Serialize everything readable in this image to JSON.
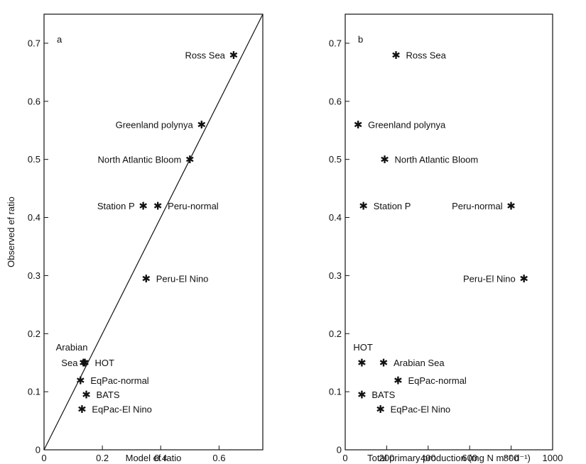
{
  "chart_data": [
    {
      "type": "scatter",
      "panel_label": "a",
      "xlabel": "Model ef ratio",
      "ylabel": "Observed ef ratio",
      "xlim": [
        0,
        0.75
      ],
      "ylim": [
        0,
        0.75
      ],
      "xticks": [
        0,
        0.2,
        0.4,
        0.6
      ],
      "xtick_labels": [
        "0",
        "0.2",
        "0.4",
        "0.6"
      ],
      "yticks": [
        0,
        0.1,
        0.2,
        0.3,
        0.4,
        0.5,
        0.6,
        0.7
      ],
      "ytick_labels": [
        "0",
        "0.1",
        "0.2",
        "0.3",
        "0.4",
        "0.5",
        "0.6",
        "0.7"
      ],
      "grid": false,
      "reference_line": {
        "type": "1:1",
        "from": [
          0,
          0
        ],
        "to": [
          0.75,
          0.75
        ]
      },
      "points": [
        {
          "label": "Ross Sea",
          "x": 0.65,
          "y": 0.68,
          "label_side": "left"
        },
        {
          "label": "Greenland polynya",
          "x": 0.54,
          "y": 0.56,
          "label_side": "left"
        },
        {
          "label": "North Atlantic Bloom",
          "x": 0.5,
          "y": 0.5,
          "label_side": "left"
        },
        {
          "label": "Station P",
          "x": 0.34,
          "y": 0.42,
          "label_side": "left"
        },
        {
          "label": "Peru-normal",
          "x": 0.39,
          "y": 0.42,
          "label_side": "right"
        },
        {
          "label": "Peru-El Nino",
          "x": 0.35,
          "y": 0.295,
          "label_side": "right"
        },
        {
          "label": "HOT",
          "x": 0.14,
          "y": 0.15,
          "label_side": "right"
        },
        {
          "label": "Arabian Sea",
          "x": 0.135,
          "y": 0.15,
          "label_side": "left-stacked",
          "label_lines": [
            "Arabian",
            "Sea"
          ]
        },
        {
          "label": "EqPac-normal",
          "x": 0.125,
          "y": 0.12,
          "label_side": "right"
        },
        {
          "label": "BATS",
          "x": 0.145,
          "y": 0.095,
          "label_side": "right"
        },
        {
          "label": "EqPac-El Nino",
          "x": 0.13,
          "y": 0.07,
          "label_side": "right"
        }
      ]
    },
    {
      "type": "scatter",
      "panel_label": "b",
      "xlabel": "Total primary production (mg N m⁻² d⁻¹)",
      "ylabel": "",
      "xlim": [
        0,
        1000
      ],
      "ylim": [
        0,
        0.75
      ],
      "xticks": [
        0,
        200,
        400,
        600,
        800,
        1000
      ],
      "xtick_labels": [
        "0",
        "200",
        "400",
        "600",
        "800",
        "1000"
      ],
      "yticks": [
        0,
        0.1,
        0.2,
        0.3,
        0.4,
        0.5,
        0.6,
        0.7
      ],
      "ytick_labels": [
        "0",
        "0.1",
        "0.2",
        "0.3",
        "0.4",
        "0.5",
        "0.6",
        "0.7"
      ],
      "grid": false,
      "points": [
        {
          "label": "Ross Sea",
          "x": 245,
          "y": 0.68,
          "label_side": "right"
        },
        {
          "label": "Greenland polynya",
          "x": 62,
          "y": 0.56,
          "label_side": "right"
        },
        {
          "label": "North Atlantic Bloom",
          "x": 190,
          "y": 0.5,
          "label_side": "right"
        },
        {
          "label": "Station P",
          "x": 88,
          "y": 0.42,
          "label_side": "right"
        },
        {
          "label": "Peru-normal",
          "x": 800,
          "y": 0.42,
          "label_side": "left"
        },
        {
          "label": "Peru-El Nino",
          "x": 862,
          "y": 0.295,
          "label_side": "left"
        },
        {
          "label": "HOT",
          "x": 80,
          "y": 0.15,
          "label_side": "above-left"
        },
        {
          "label": "Arabian Sea",
          "x": 185,
          "y": 0.15,
          "label_side": "right"
        },
        {
          "label": "EqPac-normal",
          "x": 255,
          "y": 0.12,
          "label_side": "right"
        },
        {
          "label": "BATS",
          "x": 80,
          "y": 0.095,
          "label_side": "right"
        },
        {
          "label": "EqPac-El Nino",
          "x": 170,
          "y": 0.07,
          "label_side": "right"
        }
      ]
    }
  ]
}
